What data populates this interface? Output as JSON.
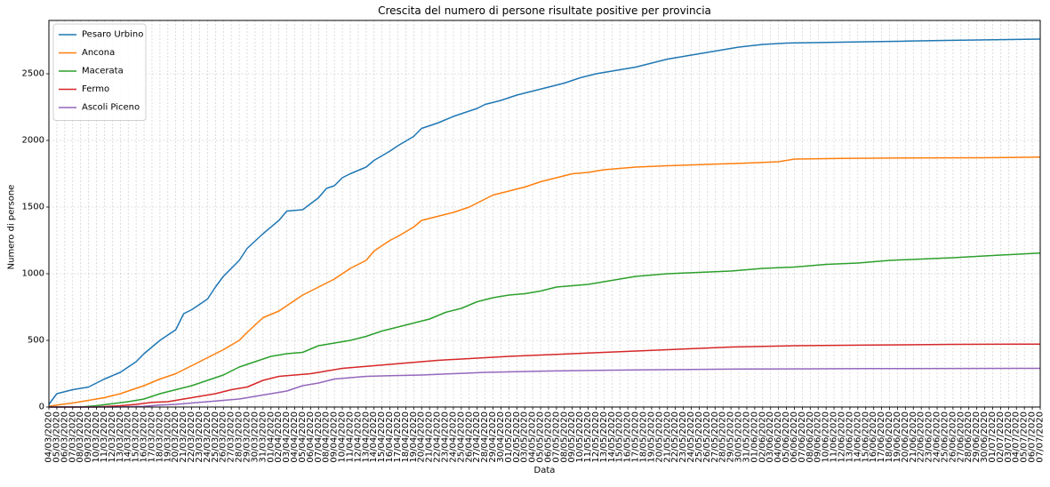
{
  "chart_data": {
    "type": "line",
    "title": "Crescita del numero di persone risultate positive per provincia",
    "xlabel": "Data",
    "ylabel": "Numero di persone",
    "ylim": [
      0,
      2900
    ],
    "yticks": [
      0,
      500,
      1000,
      1500,
      2000,
      2500
    ],
    "grid": true,
    "legend_position": "top-left",
    "start_date": "2020-03-04",
    "end_date": "2020-07-07",
    "series": [
      {
        "name": "Pesaro Urbino",
        "color": "#1f77b4",
        "points": [
          [
            "2020-03-04",
            20
          ],
          [
            "2020-03-05",
            100
          ],
          [
            "2020-03-07",
            130
          ],
          [
            "2020-03-09",
            150
          ],
          [
            "2020-03-11",
            210
          ],
          [
            "2020-03-13",
            260
          ],
          [
            "2020-03-15",
            340
          ],
          [
            "2020-03-16",
            400
          ],
          [
            "2020-03-18",
            500
          ],
          [
            "2020-03-20",
            580
          ],
          [
            "2020-03-21",
            700
          ],
          [
            "2020-03-22",
            730
          ],
          [
            "2020-03-24",
            810
          ],
          [
            "2020-03-25",
            900
          ],
          [
            "2020-03-26",
            980
          ],
          [
            "2020-03-28",
            1100
          ],
          [
            "2020-03-29",
            1190
          ],
          [
            "2020-03-31",
            1300
          ],
          [
            "2020-04-02",
            1400
          ],
          [
            "2020-04-03",
            1470
          ],
          [
            "2020-04-05",
            1480
          ],
          [
            "2020-04-07",
            1570
          ],
          [
            "2020-04-08",
            1640
          ],
          [
            "2020-04-09",
            1660
          ],
          [
            "2020-04-10",
            1720
          ],
          [
            "2020-04-11",
            1750
          ],
          [
            "2020-04-13",
            1800
          ],
          [
            "2020-04-14",
            1850
          ],
          [
            "2020-04-16",
            1920
          ],
          [
            "2020-04-17",
            1960
          ],
          [
            "2020-04-19",
            2030
          ],
          [
            "2020-04-20",
            2090
          ],
          [
            "2020-04-22",
            2130
          ],
          [
            "2020-04-24",
            2180
          ],
          [
            "2020-04-25",
            2200
          ],
          [
            "2020-04-27",
            2240
          ],
          [
            "2020-04-28",
            2270
          ],
          [
            "2020-04-30",
            2300
          ],
          [
            "2020-05-02",
            2340
          ],
          [
            "2020-05-04",
            2370
          ],
          [
            "2020-05-06",
            2400
          ],
          [
            "2020-05-08",
            2430
          ],
          [
            "2020-05-10",
            2470
          ],
          [
            "2020-05-12",
            2500
          ],
          [
            "2020-05-14",
            2520
          ],
          [
            "2020-05-17",
            2550
          ],
          [
            "2020-05-19",
            2580
          ],
          [
            "2020-05-21",
            2610
          ],
          [
            "2020-05-23",
            2630
          ],
          [
            "2020-05-25",
            2650
          ],
          [
            "2020-05-28",
            2680
          ],
          [
            "2020-05-30",
            2700
          ],
          [
            "2020-06-02",
            2720
          ],
          [
            "2020-06-05",
            2730
          ],
          [
            "2020-06-10",
            2735
          ],
          [
            "2020-06-15",
            2740
          ],
          [
            "2020-06-20",
            2745
          ],
          [
            "2020-06-25",
            2750
          ],
          [
            "2020-07-01",
            2755
          ],
          [
            "2020-07-07",
            2760
          ]
        ]
      },
      {
        "name": "Ancona",
        "color": "#ff7f0e",
        "points": [
          [
            "2020-03-04",
            5
          ],
          [
            "2020-03-05",
            15
          ],
          [
            "2020-03-07",
            30
          ],
          [
            "2020-03-09",
            50
          ],
          [
            "2020-03-11",
            70
          ],
          [
            "2020-03-13",
            100
          ],
          [
            "2020-03-15",
            140
          ],
          [
            "2020-03-16",
            160
          ],
          [
            "2020-03-18",
            210
          ],
          [
            "2020-03-20",
            250
          ],
          [
            "2020-03-22",
            310
          ],
          [
            "2020-03-24",
            370
          ],
          [
            "2020-03-26",
            430
          ],
          [
            "2020-03-28",
            500
          ],
          [
            "2020-03-29",
            560
          ],
          [
            "2020-03-31",
            670
          ],
          [
            "2020-04-02",
            720
          ],
          [
            "2020-04-03",
            760
          ],
          [
            "2020-04-05",
            840
          ],
          [
            "2020-04-07",
            900
          ],
          [
            "2020-04-09",
            960
          ],
          [
            "2020-04-11",
            1040
          ],
          [
            "2020-04-13",
            1100
          ],
          [
            "2020-04-14",
            1170
          ],
          [
            "2020-04-16",
            1250
          ],
          [
            "2020-04-17",
            1280
          ],
          [
            "2020-04-19",
            1350
          ],
          [
            "2020-04-20",
            1400
          ],
          [
            "2020-04-22",
            1430
          ],
          [
            "2020-04-24",
            1460
          ],
          [
            "2020-04-26",
            1500
          ],
          [
            "2020-04-28",
            1560
          ],
          [
            "2020-04-29",
            1590
          ],
          [
            "2020-05-01",
            1620
          ],
          [
            "2020-05-03",
            1650
          ],
          [
            "2020-05-05",
            1690
          ],
          [
            "2020-05-07",
            1720
          ],
          [
            "2020-05-09",
            1750
          ],
          [
            "2020-05-11",
            1760
          ],
          [
            "2020-05-13",
            1780
          ],
          [
            "2020-05-15",
            1790
          ],
          [
            "2020-05-17",
            1800
          ],
          [
            "2020-05-21",
            1810
          ],
          [
            "2020-05-26",
            1820
          ],
          [
            "2020-05-31",
            1830
          ],
          [
            "2020-06-04",
            1840
          ],
          [
            "2020-06-06",
            1860
          ],
          [
            "2020-06-12",
            1865
          ],
          [
            "2020-06-20",
            1868
          ],
          [
            "2020-06-30",
            1870
          ],
          [
            "2020-07-07",
            1875
          ]
        ]
      },
      {
        "name": "Macerata",
        "color": "#2ca02c",
        "points": [
          [
            "2020-03-04",
            0
          ],
          [
            "2020-03-08",
            0
          ],
          [
            "2020-03-10",
            10
          ],
          [
            "2020-03-12",
            25
          ],
          [
            "2020-03-14",
            40
          ],
          [
            "2020-03-16",
            60
          ],
          [
            "2020-03-18",
            100
          ],
          [
            "2020-03-20",
            130
          ],
          [
            "2020-03-22",
            160
          ],
          [
            "2020-03-24",
            200
          ],
          [
            "2020-03-26",
            240
          ],
          [
            "2020-03-28",
            300
          ],
          [
            "2020-03-30",
            340
          ],
          [
            "2020-04-01",
            380
          ],
          [
            "2020-04-03",
            400
          ],
          [
            "2020-04-05",
            410
          ],
          [
            "2020-04-07",
            460
          ],
          [
            "2020-04-09",
            480
          ],
          [
            "2020-04-11",
            500
          ],
          [
            "2020-04-13",
            530
          ],
          [
            "2020-04-15",
            570
          ],
          [
            "2020-04-17",
            600
          ],
          [
            "2020-04-19",
            630
          ],
          [
            "2020-04-21",
            660
          ],
          [
            "2020-04-23",
            710
          ],
          [
            "2020-04-25",
            740
          ],
          [
            "2020-04-27",
            790
          ],
          [
            "2020-04-29",
            820
          ],
          [
            "2020-05-01",
            840
          ],
          [
            "2020-05-03",
            850
          ],
          [
            "2020-05-05",
            870
          ],
          [
            "2020-05-07",
            900
          ],
          [
            "2020-05-09",
            910
          ],
          [
            "2020-05-11",
            920
          ],
          [
            "2020-05-13",
            940
          ],
          [
            "2020-05-15",
            960
          ],
          [
            "2020-05-17",
            980
          ],
          [
            "2020-05-19",
            990
          ],
          [
            "2020-05-21",
            1000
          ],
          [
            "2020-05-25",
            1010
          ],
          [
            "2020-05-29",
            1020
          ],
          [
            "2020-06-02",
            1040
          ],
          [
            "2020-06-06",
            1050
          ],
          [
            "2020-06-10",
            1070
          ],
          [
            "2020-06-14",
            1080
          ],
          [
            "2020-06-18",
            1100
          ],
          [
            "2020-06-22",
            1110
          ],
          [
            "2020-06-26",
            1120
          ],
          [
            "2020-07-02",
            1140
          ],
          [
            "2020-07-07",
            1155
          ]
        ]
      },
      {
        "name": "Fermo",
        "color": "#d62728",
        "points": [
          [
            "2020-03-04",
            0
          ],
          [
            "2020-03-10",
            0
          ],
          [
            "2020-03-13",
            10
          ],
          [
            "2020-03-15",
            20
          ],
          [
            "2020-03-17",
            35
          ],
          [
            "2020-03-19",
            40
          ],
          [
            "2020-03-21",
            60
          ],
          [
            "2020-03-23",
            80
          ],
          [
            "2020-03-25",
            100
          ],
          [
            "2020-03-27",
            130
          ],
          [
            "2020-03-29",
            150
          ],
          [
            "2020-03-31",
            200
          ],
          [
            "2020-04-02",
            230
          ],
          [
            "2020-04-04",
            240
          ],
          [
            "2020-04-06",
            250
          ],
          [
            "2020-04-08",
            270
          ],
          [
            "2020-04-10",
            290
          ],
          [
            "2020-04-12",
            300
          ],
          [
            "2020-04-14",
            310
          ],
          [
            "2020-04-16",
            320
          ],
          [
            "2020-04-18",
            330
          ],
          [
            "2020-04-20",
            340
          ],
          [
            "2020-04-22",
            350
          ],
          [
            "2020-04-25",
            360
          ],
          [
            "2020-04-28",
            370
          ],
          [
            "2020-05-01",
            380
          ],
          [
            "2020-05-05",
            390
          ],
          [
            "2020-05-09",
            400
          ],
          [
            "2020-05-13",
            410
          ],
          [
            "2020-05-17",
            420
          ],
          [
            "2020-05-21",
            430
          ],
          [
            "2020-05-25",
            440
          ],
          [
            "2020-05-29",
            450
          ],
          [
            "2020-06-06",
            460
          ],
          [
            "2020-06-16",
            465
          ],
          [
            "2020-06-26",
            470
          ],
          [
            "2020-07-07",
            472
          ]
        ]
      },
      {
        "name": "Ascoli Piceno",
        "color": "#9467bd",
        "points": [
          [
            "2020-03-04",
            0
          ],
          [
            "2020-03-12",
            0
          ],
          [
            "2020-03-16",
            5
          ],
          [
            "2020-03-18",
            15
          ],
          [
            "2020-03-20",
            20
          ],
          [
            "2020-03-22",
            30
          ],
          [
            "2020-03-24",
            40
          ],
          [
            "2020-03-26",
            50
          ],
          [
            "2020-03-28",
            60
          ],
          [
            "2020-03-30",
            80
          ],
          [
            "2020-04-01",
            100
          ],
          [
            "2020-04-03",
            120
          ],
          [
            "2020-04-05",
            160
          ],
          [
            "2020-04-07",
            180
          ],
          [
            "2020-04-09",
            210
          ],
          [
            "2020-04-11",
            220
          ],
          [
            "2020-04-13",
            230
          ],
          [
            "2020-04-16",
            235
          ],
          [
            "2020-04-20",
            240
          ],
          [
            "2020-04-24",
            250
          ],
          [
            "2020-04-28",
            260
          ],
          [
            "2020-05-02",
            265
          ],
          [
            "2020-05-06",
            270
          ],
          [
            "2020-05-12",
            275
          ],
          [
            "2020-05-20",
            280
          ],
          [
            "2020-05-30",
            285
          ],
          [
            "2020-06-15",
            288
          ],
          [
            "2020-07-07",
            290
          ]
        ]
      }
    ],
    "x_tick_labels": [
      "04/03/2020",
      "05/03/2020",
      "06/03/2020",
      "07/03/2020",
      "08/03/2020",
      "09/03/2020",
      "10/03/2020",
      "11/03/2020",
      "12/03/2020",
      "13/03/2020",
      "14/03/2020",
      "15/03/2020",
      "16/03/2020",
      "17/03/2020",
      "18/03/2020",
      "19/03/2020",
      "20/03/2020",
      "21/03/2020",
      "22/03/2020",
      "23/03/2020",
      "24/03/2020",
      "25/03/2020",
      "26/03/2020",
      "27/03/2020",
      "28/03/2020",
      "29/03/2020",
      "30/03/2020",
      "31/03/2020",
      "01/04/2020",
      "02/04/2020",
      "03/04/2020",
      "04/04/2020",
      "05/04/2020",
      "06/04/2020",
      "07/04/2020",
      "08/04/2020",
      "09/04/2020",
      "10/04/2020",
      "11/04/2020",
      "12/04/2020",
      "13/04/2020",
      "14/04/2020",
      "15/04/2020",
      "16/04/2020",
      "17/04/2020",
      "18/04/2020",
      "19/04/2020",
      "20/04/2020",
      "21/04/2020",
      "22/04/2020",
      "23/04/2020",
      "24/04/2020",
      "25/04/2020",
      "26/04/2020",
      "27/04/2020",
      "28/04/2020",
      "29/04/2020",
      "30/04/2020",
      "01/05/2020",
      "02/05/2020",
      "03/05/2020",
      "04/05/2020",
      "05/05/2020",
      "06/05/2020",
      "07/05/2020",
      "08/05/2020",
      "09/05/2020",
      "10/05/2020",
      "11/05/2020",
      "12/05/2020",
      "13/05/2020",
      "14/05/2020",
      "15/05/2020",
      "16/05/2020",
      "17/05/2020",
      "18/05/2020",
      "19/05/2020",
      "20/05/2020",
      "21/05/2020",
      "22/05/2020",
      "23/05/2020",
      "24/05/2020",
      "25/05/2020",
      "26/05/2020",
      "27/05/2020",
      "28/05/2020",
      "29/05/2020",
      "30/05/2020",
      "31/05/2020",
      "01/06/2020",
      "02/06/2020",
      "03/06/2020",
      "04/06/2020",
      "05/06/2020",
      "06/06/2020",
      "07/06/2020",
      "08/06/2020",
      "09/06/2020",
      "10/06/2020",
      "11/06/2020",
      "12/06/2020",
      "13/06/2020",
      "14/06/2020",
      "15/06/2020",
      "16/06/2020",
      "17/06/2020",
      "18/06/2020",
      "19/06/2020",
      "20/06/2020",
      "21/06/2020",
      "22/06/2020",
      "23/06/2020",
      "24/06/2020",
      "25/06/2020",
      "26/06/2020",
      "27/06/2020",
      "28/06/2020",
      "29/06/2020",
      "30/06/2020",
      "01/07/2020",
      "02/07/2020",
      "03/07/2020",
      "04/07/2020",
      "05/07/2020",
      "06/07/2020",
      "07/07/2020"
    ]
  }
}
